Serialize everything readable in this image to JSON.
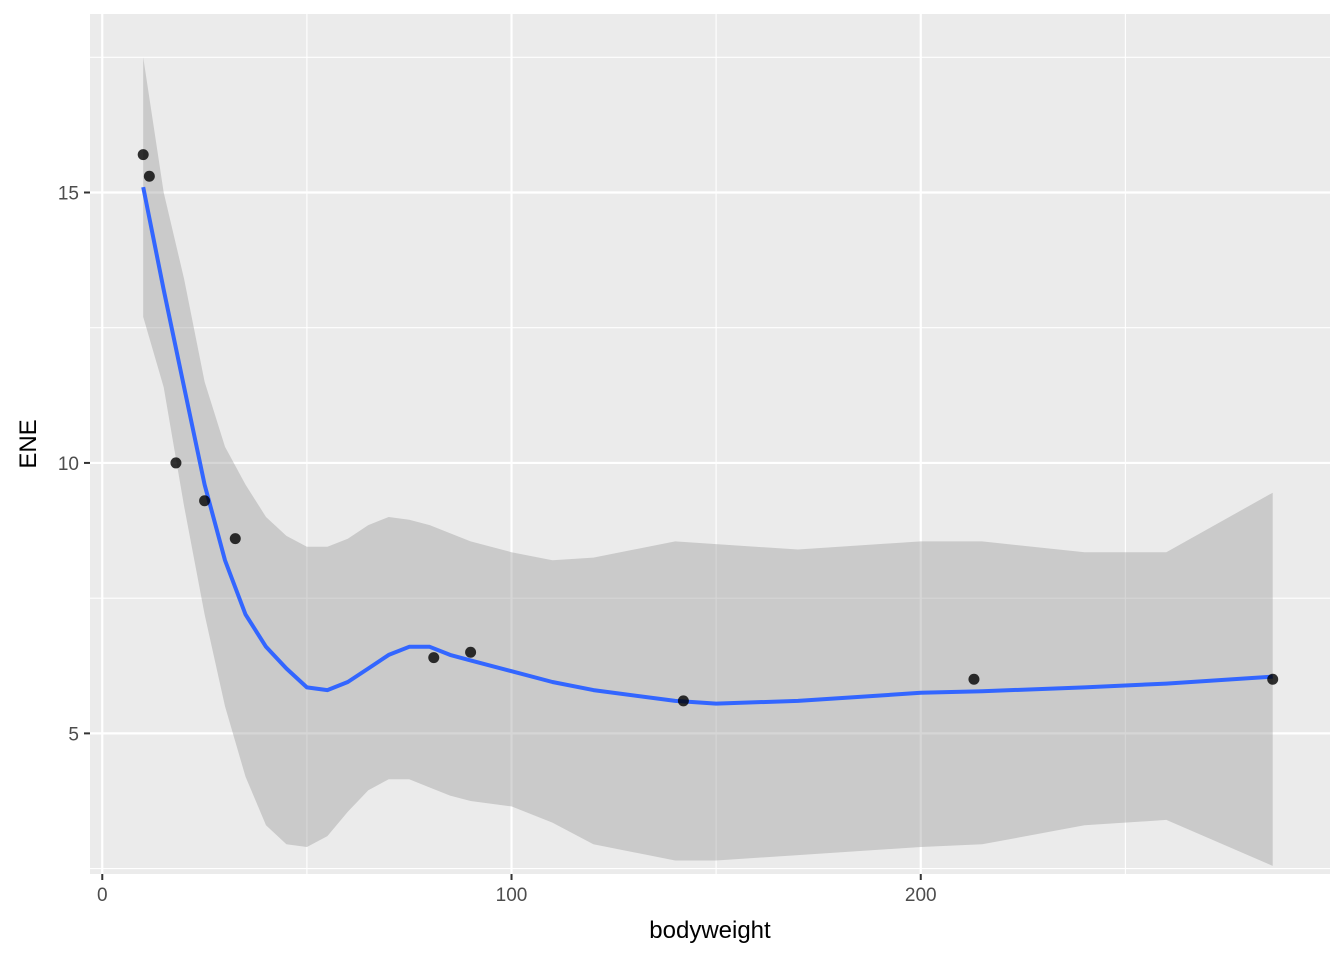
{
  "chart_data": {
    "type": "scatter",
    "xlabel": "bodyweight",
    "ylabel": "ENE",
    "xlim": [
      -3,
      300
    ],
    "ylim": [
      2.4,
      18.3
    ],
    "x_ticks": [
      0,
      100,
      200
    ],
    "x_minor_ticks": [
      50,
      150,
      250
    ],
    "y_ticks": [
      5,
      10,
      15
    ],
    "y_minor_ticks": [
      2.5,
      7.5,
      12.5,
      17.5
    ],
    "grid": true,
    "points": [
      {
        "x": 10,
        "y": 15.7
      },
      {
        "x": 11.5,
        "y": 15.3
      },
      {
        "x": 18,
        "y": 10.0
      },
      {
        "x": 25,
        "y": 9.3
      },
      {
        "x": 32.5,
        "y": 8.6
      },
      {
        "x": 81,
        "y": 6.4
      },
      {
        "x": 90,
        "y": 6.5
      },
      {
        "x": 142,
        "y": 5.6
      },
      {
        "x": 213,
        "y": 6.0
      },
      {
        "x": 286,
        "y": 6.0
      }
    ],
    "smooth": {
      "x": [
        10,
        15,
        20,
        25,
        30,
        35,
        40,
        45,
        50,
        55,
        60,
        65,
        70,
        75,
        80,
        85,
        90,
        100,
        110,
        120,
        140,
        150,
        170,
        200,
        215,
        240,
        260,
        286
      ],
      "y": [
        15.1,
        13.2,
        11.4,
        9.6,
        8.2,
        7.2,
        6.6,
        6.2,
        5.85,
        5.8,
        5.95,
        6.2,
        6.45,
        6.6,
        6.6,
        6.45,
        6.35,
        6.15,
        5.95,
        5.8,
        5.6,
        5.55,
        5.6,
        5.75,
        5.78,
        5.85,
        5.92,
        6.05
      ],
      "lower": [
        12.7,
        11.4,
        9.2,
        7.2,
        5.5,
        4.2,
        3.3,
        2.95,
        2.9,
        3.1,
        3.55,
        3.95,
        4.15,
        4.15,
        4.0,
        3.85,
        3.75,
        3.65,
        3.35,
        2.95,
        2.65,
        2.65,
        2.75,
        2.9,
        2.95,
        3.3,
        3.4,
        2.55
      ],
      "upper": [
        17.5,
        15.0,
        13.4,
        11.5,
        10.3,
        9.6,
        9.0,
        8.65,
        8.45,
        8.45,
        8.6,
        8.85,
        9.0,
        8.95,
        8.85,
        8.7,
        8.55,
        8.35,
        8.2,
        8.25,
        8.55,
        8.5,
        8.4,
        8.55,
        8.55,
        8.35,
        8.35,
        9.45
      ]
    },
    "colors": {
      "panel": "#ebebeb",
      "grid": "#ffffff",
      "point": "#000000",
      "line": "#3366ff",
      "ribbon": "#999999"
    }
  }
}
